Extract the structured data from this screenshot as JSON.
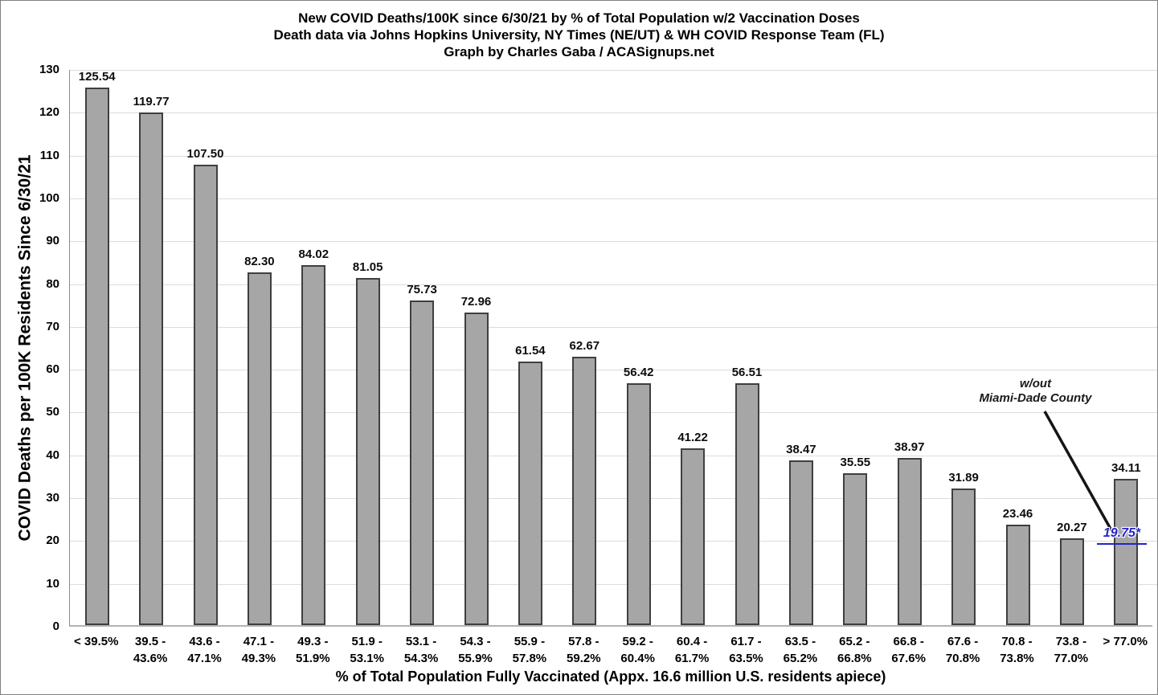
{
  "chart_data": {
    "type": "bar",
    "title": "New COVID Deaths/100K since 6/30/21 by % of Total Population w/2 Vaccination Doses",
    "subtitle": "Death data via Johns Hopkins University, NY Times (NE/UT) & WH COVID Response Team (FL)",
    "credit": "Graph by Charles Gaba / ACASignups.net",
    "xlabel": "% of Total Population Fully Vaccinated (Appx. 16.6 million U.S. residents apiece)",
    "ylabel": "COVID Deaths per 100K Residents Since 6/30/21",
    "ylim": [
      0,
      130
    ],
    "yticks": [
      0,
      10,
      20,
      30,
      40,
      50,
      60,
      70,
      80,
      90,
      100,
      110,
      120,
      130
    ],
    "grid": true,
    "legend": "none",
    "bar_color": "#a6a6a6",
    "bar_border_color": "#3f3f3f",
    "categories": [
      "< 39.5%",
      "39.5 - 43.6%",
      "43.6 - 47.1%",
      "47.1 - 49.3%",
      "49.3 - 51.9%",
      "51.9 - 53.1%",
      "53.1 - 54.3%",
      "54.3 - 55.9%",
      "55.9 - 57.8%",
      "57.8 - 59.2%",
      "59.2 - 60.4%",
      "60.4 - 61.7%",
      "61.7 - 63.5%",
      "63.5 - 65.2%",
      "65.2 - 66.8%",
      "66.8 - 67.6%",
      "67.6 - 70.8%",
      "70.8 - 73.8%",
      "73.8 - 77.0%",
      "> 77.0%"
    ],
    "values": [
      125.54,
      119.77,
      107.5,
      82.3,
      84.02,
      81.05,
      75.73,
      72.96,
      61.54,
      62.67,
      56.42,
      41.22,
      56.51,
      38.47,
      35.55,
      38.97,
      31.89,
      23.46,
      20.27,
      34.11
    ],
    "annotation": {
      "text_line1": "w/out",
      "text_line2": "Miami-Dade County",
      "value_label": "19.75*",
      "value_color": "#2323c9",
      "applies_to_category": "> 77.0%"
    }
  }
}
